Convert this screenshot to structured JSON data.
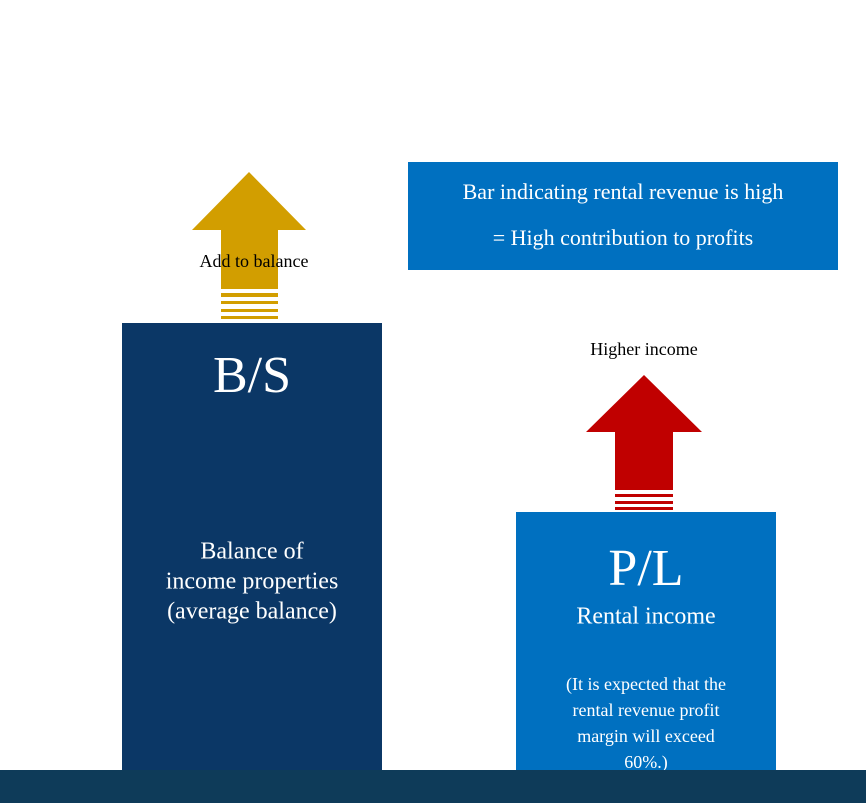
{
  "callout": {
    "lines": [
      "Bar indicating rental revenue is high",
      "= High contribution to profits"
    ]
  },
  "bs": {
    "arrow_label": "Add to balance",
    "title": "B/S",
    "lines": [
      "Balance of",
      "income properties",
      "(average balance)"
    ]
  },
  "pl": {
    "arrow_label": "Higher income",
    "title": "P/L",
    "subtitle": "Rental income",
    "note_lines": [
      "(It is expected that the",
      "rental revenue profit",
      "margin will exceed",
      "60%.)"
    ]
  }
}
